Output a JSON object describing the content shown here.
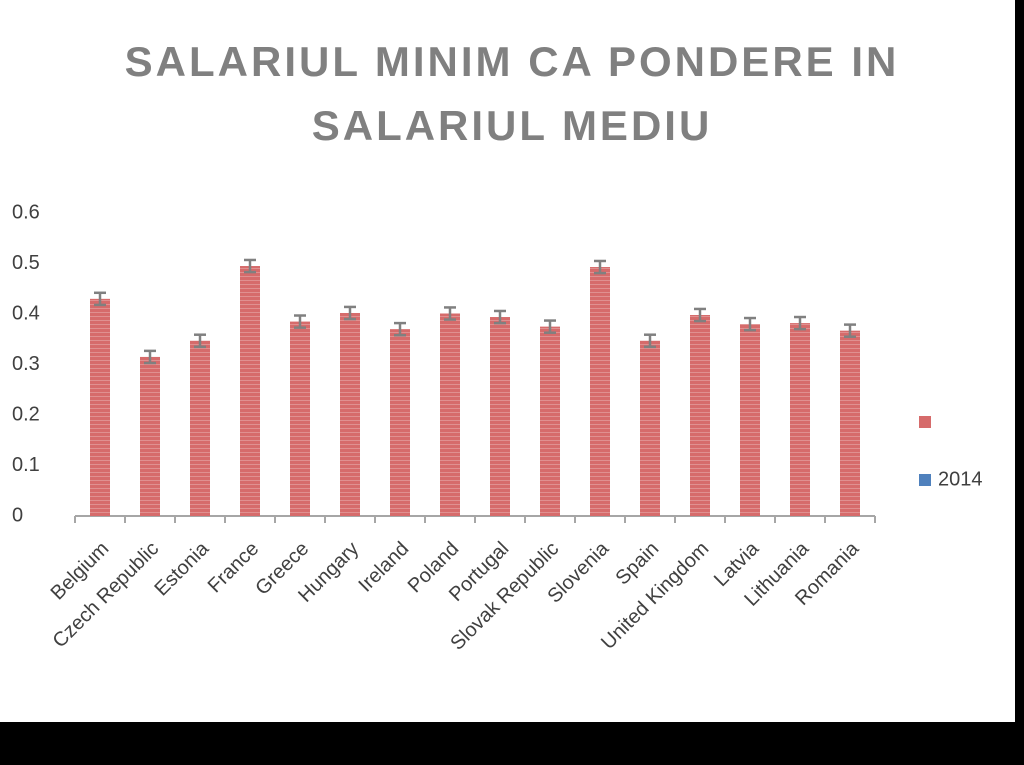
{
  "chart_data": {
    "type": "bar",
    "title": "SALARIUL MINIM CA PONDERE IN SALARIUL MEDIU",
    "categories": [
      "Belgium",
      "Czech Republic",
      "Estonia",
      "France",
      "Greece",
      "Hungary",
      "Ireland",
      "Poland",
      "Portugal",
      "Slovak Republic",
      "Slovenia",
      "Spain",
      "United Kingdom",
      "Latvia",
      "Lithuania",
      "Romania"
    ],
    "series": [
      {
        "color": "#d66b6b",
        "values": [
          0.43,
          0.315,
          0.347,
          0.495,
          0.385,
          0.402,
          0.37,
          0.401,
          0.394,
          0.375,
          0.493,
          0.347,
          0.398,
          0.38,
          0.382,
          0.367
        ],
        "errors": [
          0.012,
          0.012,
          0.012,
          0.012,
          0.012,
          0.012,
          0.012,
          0.012,
          0.012,
          0.012,
          0.012,
          0.012,
          0.012,
          0.012,
          0.012,
          0.012
        ]
      },
      {
        "name": "2014",
        "color": "#4f81bd",
        "values": [
          null,
          null,
          null,
          null,
          null,
          null,
          null,
          null,
          null,
          null,
          null,
          null,
          null,
          null,
          null,
          null
        ]
      }
    ],
    "ylim": [
      0,
      0.6
    ],
    "yticks": [
      0,
      0.1,
      0.2,
      0.3,
      0.4,
      0.5,
      0.6
    ],
    "grid": false,
    "legend": "right"
  }
}
